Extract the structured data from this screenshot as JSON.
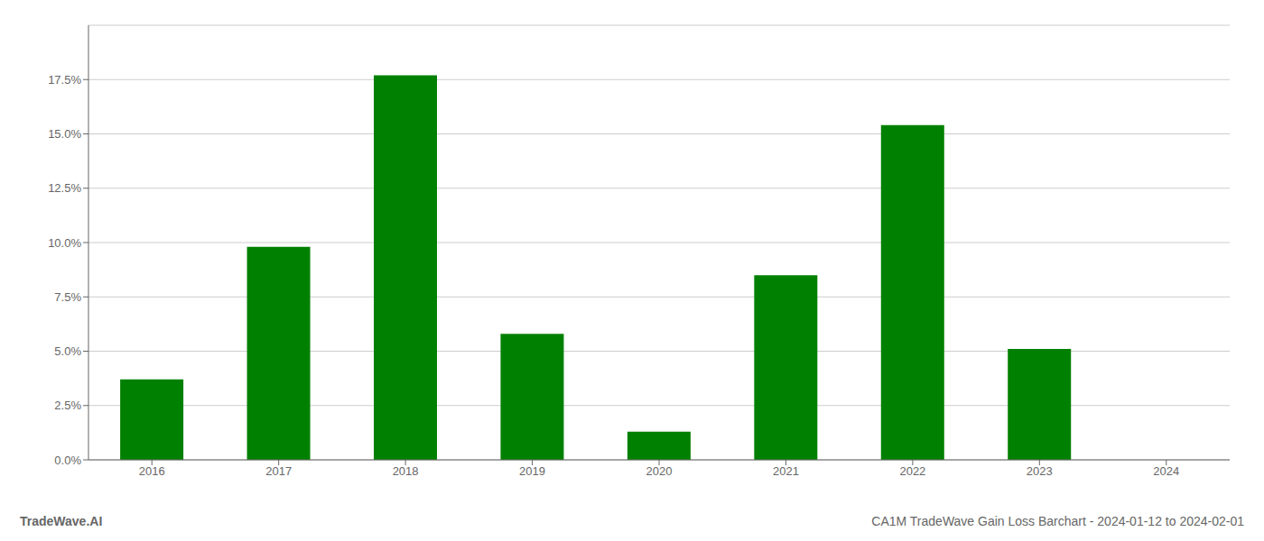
{
  "chart_data": {
    "type": "bar",
    "categories": [
      "2016",
      "2017",
      "2018",
      "2019",
      "2020",
      "2021",
      "2022",
      "2023",
      "2024"
    ],
    "values": [
      0.037,
      0.098,
      0.177,
      0.058,
      0.013,
      0.085,
      0.154,
      0.051,
      0.0
    ],
    "color": "#008000",
    "ylim": [
      0.0,
      0.2
    ],
    "yticks": [
      {
        "value": 0.0,
        "label": "0.0%"
      },
      {
        "value": 0.025,
        "label": "2.5%"
      },
      {
        "value": 0.05,
        "label": "5.0%"
      },
      {
        "value": 0.075,
        "label": "7.5%"
      },
      {
        "value": 0.1,
        "label": "10.0%"
      },
      {
        "value": 0.125,
        "label": "12.5%"
      },
      {
        "value": 0.15,
        "label": "15.0%"
      },
      {
        "value": 0.175,
        "label": "17.5%"
      }
    ],
    "grid": true,
    "annotations": [
      "TradeWave.AI",
      "CA1M TradeWave Gain Loss Barchart - 2024-01-12 to 2024-02-01"
    ]
  }
}
